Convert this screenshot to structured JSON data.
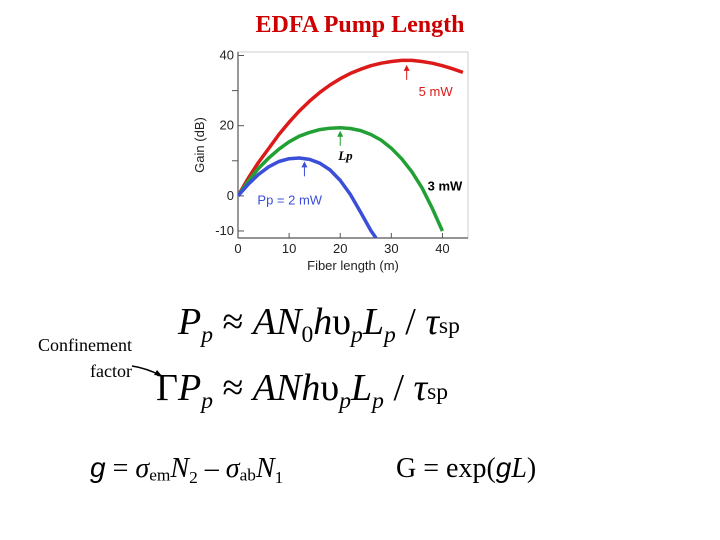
{
  "slide": {
    "title": "EDFA Pump Length",
    "confinement_line1": "Confinement",
    "confinement_line2": "factor"
  },
  "equations": {
    "eq1": {
      "P": "P",
      "p1": "p",
      "approx": "≈",
      "A": "A",
      "N": "N",
      "zero": "0",
      "h": "h",
      "nu": "υ",
      "p2": "p",
      "L": "L",
      "p3": "p",
      "slash": "/",
      "tau": "τ",
      "sp": "sp"
    },
    "eq2": {
      "Gamma": "Γ",
      "P": "P",
      "p1": "p",
      "approx": "≈",
      "A": "A",
      "N": "N",
      "h": "h",
      "nu": "υ",
      "p2": "p",
      "L": "L",
      "p3": "p",
      "slash": "/",
      "tau": "τ",
      "sp": "sp"
    },
    "eq3": {
      "g": "g",
      "eq": "=",
      "sigma1": "σ",
      "em": "em",
      "N2": "N",
      "two": "2",
      "minus": "–",
      "sigma2": "σ",
      "ab": "ab",
      "N1": "N",
      "one": "1"
    },
    "eq4": {
      "G": "G = exp(",
      "g": "g",
      "L": "L",
      "close": ")"
    }
  },
  "chart_data": {
    "type": "line",
    "title": "",
    "xlabel": "Fiber length (m)",
    "ylabel": "Gain (dB)",
    "xlim": [
      0,
      45
    ],
    "ylim": [
      -12,
      41
    ],
    "x_ticks": [
      0,
      10,
      20,
      30,
      40
    ],
    "y_ticks": [
      -10,
      0,
      20,
      40
    ],
    "y_minor_ticks": [
      10,
      30
    ],
    "grid": false,
    "series": [
      {
        "name": "5 mW",
        "color": "#dd1a1a",
        "x": [
          0,
          2,
          4,
          6,
          8,
          10,
          12,
          14,
          16,
          18,
          20,
          22,
          24,
          26,
          28,
          30,
          32,
          34,
          36,
          38,
          40,
          42,
          44
        ],
        "y": [
          0,
          5,
          9.5,
          13.5,
          17.5,
          21,
          24.2,
          27,
          29.5,
          31.6,
          33.4,
          34.9,
          36.1,
          37.1,
          37.8,
          38.3,
          38.6,
          38.6,
          38.3,
          37.8,
          37.1,
          36.2,
          35.2
        ]
      },
      {
        "name": "3 mW",
        "color": "#22a035",
        "x": [
          0,
          2,
          4,
          6,
          8,
          10,
          12,
          14,
          16,
          18,
          20,
          22,
          24,
          26,
          28,
          30,
          32,
          34,
          36,
          38,
          40
        ],
        "y": [
          0,
          4.2,
          7.8,
          10.8,
          13.3,
          15.4,
          17,
          18.1,
          18.9,
          19.3,
          19.4,
          19.2,
          18.6,
          17.5,
          15.9,
          13.6,
          10.6,
          6.9,
          2.3,
          -3.5,
          -10
        ]
      },
      {
        "name": "Pp = 2 mW",
        "color": "#3a4ed8",
        "x": [
          0,
          2,
          4,
          6,
          8,
          10,
          12,
          14,
          16,
          18,
          20,
          22,
          24,
          26,
          27
        ],
        "y": [
          0,
          3.3,
          6.1,
          8.3,
          9.8,
          10.6,
          10.8,
          10.4,
          9.3,
          7.4,
          4.4,
          0.4,
          -4.7,
          -9.9,
          -12
        ]
      }
    ],
    "annotations": [
      {
        "text": "5 mW",
        "color": "#dd1a1a",
        "at_x": 33,
        "at_y": 38.2
      },
      {
        "text": "3 mW",
        "color": "#000000",
        "at_x": 20,
        "at_y": 19.4
      },
      {
        "text": "Lp",
        "color": "#000000",
        "at_x": 20,
        "at_y": 19.4
      },
      {
        "text": "Pp = 2 mW",
        "color": "#3a4ed8",
        "at_x": 13,
        "at_y": 10.7
      }
    ]
  }
}
